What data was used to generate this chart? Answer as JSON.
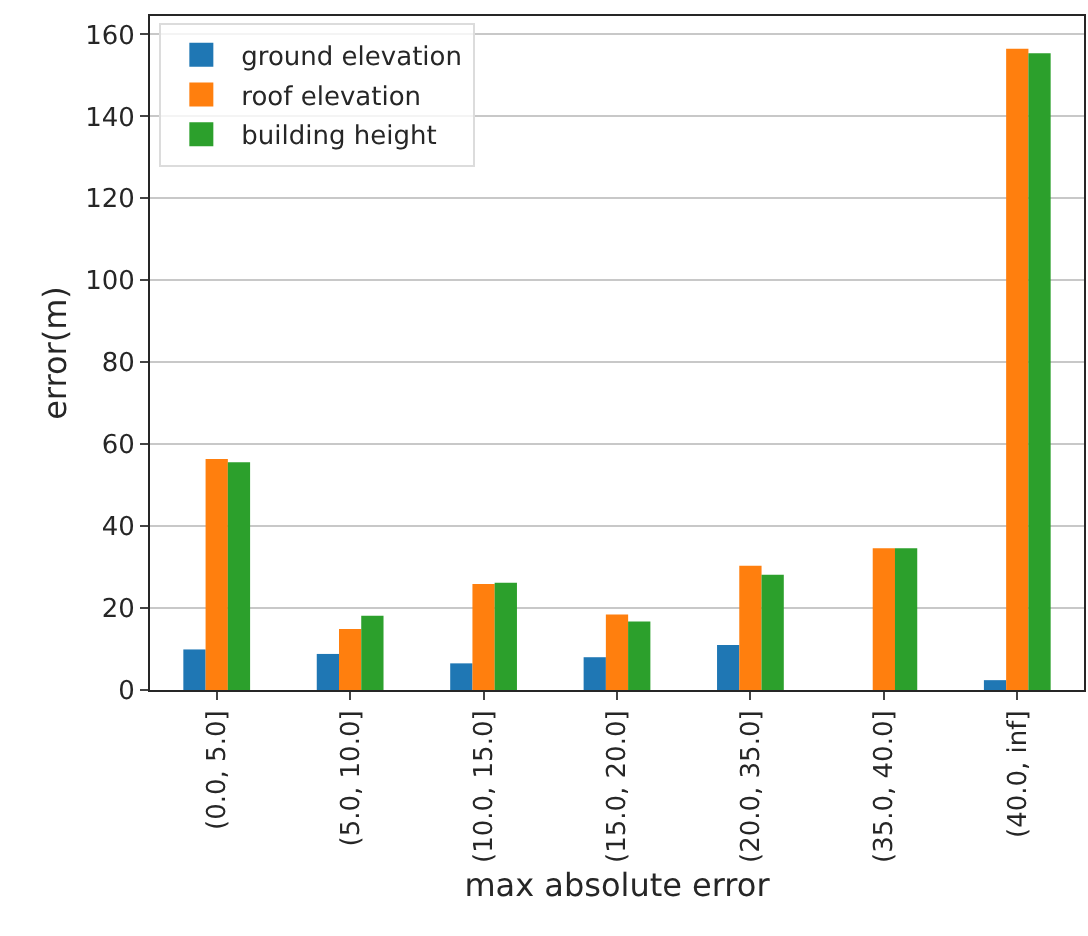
{
  "chart_data": {
    "type": "bar",
    "xlabel": "max absolute error",
    "ylabel": "error(m)",
    "categories": [
      "(0.0, 5.0]",
      "(5.0, 10.0]",
      "(10.0, 15.0]",
      "(15.0, 20.0]",
      "(20.0, 35.0]",
      "(35.0, 40.0]",
      "(40.0, inf]"
    ],
    "series": [
      {
        "name": "ground elevation",
        "color": "#1f77b4",
        "values": [
          9.9,
          8.8,
          6.5,
          8.0,
          11.0,
          null,
          2.4
        ]
      },
      {
        "name": "roof elevation",
        "color": "#ff7f0e",
        "values": [
          56.4,
          14.9,
          25.9,
          18.4,
          30.3,
          34.6,
          156.5
        ]
      },
      {
        "name": "building height",
        "color": "#2ca02c",
        "values": [
          55.6,
          18.1,
          26.2,
          16.7,
          28.1,
          34.6,
          155.4
        ]
      }
    ],
    "ylim": [
      0,
      164.5
    ],
    "yticks": [
      0,
      20,
      40,
      60,
      80,
      100,
      120,
      140,
      160
    ],
    "grid": "y",
    "legend": "top left"
  }
}
